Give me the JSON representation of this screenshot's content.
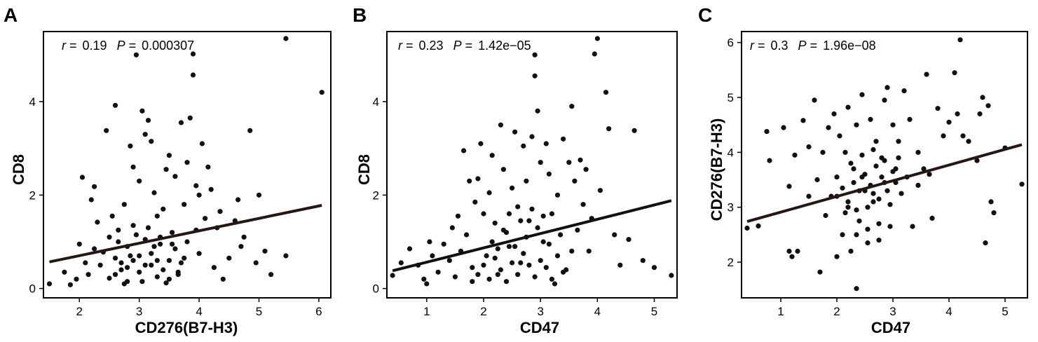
{
  "chart_data": [
    {
      "type": "scatter",
      "panel": "A",
      "title": "",
      "xlabel": "CD276(B7-H3)",
      "ylabel": "CD8",
      "xlim": [
        1.4,
        6.2
      ],
      "ylim": [
        -0.2,
        5.5
      ],
      "xticks": [
        2,
        3,
        4,
        5,
        6
      ],
      "yticks": [
        0,
        2,
        4
      ],
      "grid": false,
      "legend": "none",
      "annotation": {
        "r_symbol": "r",
        "r_value": "0.19",
        "p_symbol": "P",
        "p_value": "0.000307",
        "eq": "="
      },
      "trend": {
        "x": [
          1.5,
          6.05
        ],
        "y": [
          0.57,
          1.78
        ]
      },
      "point_color": "#111111",
      "line_color": "#231815",
      "points": [
        [
          1.5,
          0.1
        ],
        [
          1.75,
          0.35
        ],
        [
          1.85,
          0.08
        ],
        [
          1.95,
          0.2
        ],
        [
          2.05,
          2.38
        ],
        [
          2.0,
          0.95
        ],
        [
          2.1,
          0.55
        ],
        [
          2.15,
          0.3
        ],
        [
          2.2,
          1.9
        ],
        [
          2.25,
          2.18
        ],
        [
          2.25,
          0.85
        ],
        [
          2.3,
          1.42
        ],
        [
          2.35,
          0.5
        ],
        [
          2.4,
          0.78
        ],
        [
          2.45,
          3.38
        ],
        [
          2.5,
          1.1
        ],
        [
          2.5,
          0.22
        ],
        [
          2.55,
          1.55
        ],
        [
          2.6,
          3.92
        ],
        [
          2.6,
          0.65
        ],
        [
          2.65,
          1.25
        ],
        [
          2.7,
          0.4
        ],
        [
          2.75,
          1.8
        ],
        [
          2.8,
          0.9
        ],
        [
          2.8,
          0.15
        ],
        [
          2.85,
          3.05
        ],
        [
          2.9,
          2.6
        ],
        [
          2.9,
          1.35
        ],
        [
          2.95,
          5.0
        ],
        [
          3.0,
          2.3
        ],
        [
          3.0,
          0.7
        ],
        [
          3.05,
          3.8
        ],
        [
          3.1,
          3.3
        ],
        [
          3.1,
          1.05
        ],
        [
          3.15,
          3.6
        ],
        [
          3.2,
          3.15
        ],
        [
          3.2,
          0.5
        ],
        [
          3.25,
          2.05
        ],
        [
          3.3,
          1.55
        ],
        [
          3.3,
          0.25
        ],
        [
          3.35,
          0.95
        ],
        [
          3.4,
          1.7
        ],
        [
          3.45,
          2.55
        ],
        [
          3.5,
          2.85
        ],
        [
          3.5,
          0.6
        ],
        [
          3.55,
          1.2
        ],
        [
          3.6,
          2.4
        ],
        [
          3.65,
          0.35
        ],
        [
          3.7,
          3.55
        ],
        [
          3.75,
          1.8
        ],
        [
          3.8,
          2.7
        ],
        [
          3.8,
          1.0
        ],
        [
          3.85,
          3.65
        ],
        [
          3.9,
          4.57
        ],
        [
          3.9,
          5.02
        ],
        [
          3.95,
          2.2
        ],
        [
          4.0,
          2.0
        ],
        [
          4.0,
          0.75
        ],
        [
          4.05,
          3.1
        ],
        [
          4.1,
          1.5
        ],
        [
          4.15,
          2.6
        ],
        [
          4.2,
          2.12
        ],
        [
          4.25,
          0.45
        ],
        [
          4.3,
          1.3
        ],
        [
          4.35,
          1.65
        ],
        [
          4.4,
          0.2
        ],
        [
          4.5,
          0.65
        ],
        [
          4.6,
          1.45
        ],
        [
          4.65,
          1.9
        ],
        [
          4.7,
          0.9
        ],
        [
          4.75,
          1.1
        ],
        [
          4.85,
          3.38
        ],
        [
          4.95,
          0.55
        ],
        [
          5.0,
          2.0
        ],
        [
          5.1,
          0.8
        ],
        [
          5.2,
          0.3
        ],
        [
          5.45,
          0.7
        ],
        [
          5.45,
          5.35
        ],
        [
          6.05,
          4.2
        ],
        [
          2.6,
          0.3
        ],
        [
          2.7,
          0.55
        ],
        [
          2.8,
          0.45
        ],
        [
          2.9,
          0.6
        ],
        [
          3.0,
          0.35
        ],
        [
          3.1,
          0.5
        ],
        [
          3.2,
          0.75
        ],
        [
          3.3,
          0.6
        ],
        [
          3.4,
          0.4
        ],
        [
          3.5,
          0.2
        ],
        [
          3.6,
          0.85
        ],
        [
          3.7,
          0.55
        ],
        [
          2.65,
          1.0
        ],
        [
          2.95,
          1.15
        ],
        [
          3.15,
          1.3
        ],
        [
          3.35,
          1.1
        ],
        [
          3.55,
          0.95
        ],
        [
          3.75,
          0.65
        ],
        [
          2.75,
          0.1
        ],
        [
          3.05,
          0.15
        ],
        [
          3.45,
          0.12
        ],
        [
          3.65,
          0.3
        ],
        [
          2.85,
          0.7
        ],
        [
          3.25,
          0.9
        ],
        [
          3.95,
          1.25
        ]
      ]
    },
    {
      "type": "scatter",
      "panel": "B",
      "title": "",
      "xlabel": "CD47",
      "ylabel": "CD8",
      "xlim": [
        0.3,
        5.4
      ],
      "ylim": [
        -0.2,
        5.5
      ],
      "xticks": [
        1,
        2,
        3,
        4,
        5
      ],
      "yticks": [
        0,
        2,
        4
      ],
      "grid": false,
      "legend": "none",
      "annotation": {
        "r_symbol": "r",
        "r_value": "0.23",
        "p_symbol": "P",
        "p_value": "1.42e−05",
        "eq": "="
      },
      "trend": {
        "x": [
          0.4,
          5.3
        ],
        "y": [
          0.38,
          1.88
        ]
      },
      "point_color": "#111111",
      "line_color": "#111111",
      "points": [
        [
          0.4,
          0.28
        ],
        [
          0.55,
          0.55
        ],
        [
          0.7,
          0.85
        ],
        [
          0.85,
          0.5
        ],
        [
          0.95,
          0.2
        ],
        [
          1.0,
          0.1
        ],
        [
          1.05,
          1.0
        ],
        [
          1.1,
          0.7
        ],
        [
          1.2,
          0.35
        ],
        [
          1.3,
          0.95
        ],
        [
          1.4,
          0.6
        ],
        [
          1.45,
          1.3
        ],
        [
          1.5,
          0.25
        ],
        [
          1.55,
          1.55
        ],
        [
          1.6,
          0.8
        ],
        [
          1.65,
          2.95
        ],
        [
          1.7,
          1.15
        ],
        [
          1.75,
          2.3
        ],
        [
          1.8,
          0.45
        ],
        [
          1.85,
          1.85
        ],
        [
          1.9,
          2.35
        ],
        [
          1.95,
          3.1
        ],
        [
          2.0,
          1.6
        ],
        [
          2.05,
          0.7
        ],
        [
          2.1,
          2.05
        ],
        [
          2.15,
          2.85
        ],
        [
          2.2,
          1.4
        ],
        [
          2.25,
          0.3
        ],
        [
          2.3,
          3.5
        ],
        [
          2.35,
          2.55
        ],
        [
          2.4,
          1.2
        ],
        [
          2.45,
          0.9
        ],
        [
          2.5,
          2.15
        ],
        [
          2.55,
          3.35
        ],
        [
          2.6,
          1.75
        ],
        [
          2.65,
          0.55
        ],
        [
          2.7,
          3.05
        ],
        [
          2.75,
          2.3
        ],
        [
          2.8,
          1.45
        ],
        [
          2.85,
          3.25
        ],
        [
          2.9,
          4.55
        ],
        [
          2.9,
          5.0
        ],
        [
          2.95,
          3.8
        ],
        [
          3.0,
          2.7
        ],
        [
          3.05,
          1.0
        ],
        [
          3.1,
          3.1
        ],
        [
          3.15,
          2.45
        ],
        [
          3.2,
          1.6
        ],
        [
          3.3,
          2.0
        ],
        [
          3.4,
          3.2
        ],
        [
          3.45,
          0.4
        ],
        [
          3.5,
          2.7
        ],
        [
          3.55,
          3.9
        ],
        [
          3.6,
          2.3
        ],
        [
          3.65,
          1.25
        ],
        [
          3.7,
          2.75
        ],
        [
          3.75,
          1.8
        ],
        [
          3.8,
          2.55
        ],
        [
          3.85,
          0.8
        ],
        [
          3.9,
          1.5
        ],
        [
          3.95,
          5.02
        ],
        [
          4.0,
          5.35
        ],
        [
          4.05,
          2.1
        ],
        [
          4.15,
          4.2
        ],
        [
          4.2,
          3.42
        ],
        [
          4.3,
          1.15
        ],
        [
          4.4,
          0.5
        ],
        [
          4.55,
          1.05
        ],
        [
          4.65,
          3.38
        ],
        [
          4.8,
          0.6
        ],
        [
          5.0,
          0.45
        ],
        [
          5.3,
          0.28
        ],
        [
          1.9,
          0.3
        ],
        [
          2.0,
          0.5
        ],
        [
          2.1,
          0.2
        ],
        [
          2.2,
          0.65
        ],
        [
          2.3,
          0.4
        ],
        [
          2.4,
          0.15
        ],
        [
          2.5,
          0.55
        ],
        [
          2.6,
          0.3
        ],
        [
          2.7,
          0.75
        ],
        [
          2.8,
          0.5
        ],
        [
          2.9,
          0.25
        ],
        [
          3.0,
          0.6
        ],
        [
          3.1,
          0.45
        ],
        [
          3.2,
          0.2
        ],
        [
          3.3,
          0.7
        ],
        [
          3.4,
          0.35
        ],
        [
          2.15,
          1.0
        ],
        [
          2.35,
          1.25
        ],
        [
          2.55,
          0.9
        ],
        [
          2.75,
          1.1
        ],
        [
          2.95,
          1.3
        ],
        [
          3.15,
          0.95
        ],
        [
          3.35,
          1.15
        ],
        [
          3.55,
          0.8
        ],
        [
          2.45,
          1.6
        ],
        [
          2.65,
          1.45
        ],
        [
          2.85,
          1.7
        ],
        [
          3.05,
          1.55
        ],
        [
          3.25,
          0.1
        ],
        [
          2.25,
          0.85
        ],
        [
          1.8,
          0.15
        ]
      ]
    },
    {
      "type": "scatter",
      "panel": "C",
      "title": "",
      "xlabel": "CD47",
      "ylabel": "CD276(B7-H3)",
      "xlim": [
        0.3,
        5.4
      ],
      "ylim": [
        1.35,
        6.2
      ],
      "xticks": [
        1,
        2,
        3,
        4,
        5
      ],
      "yticks": [
        2,
        3,
        4,
        5,
        6
      ],
      "grid": false,
      "legend": "none",
      "annotation": {
        "r_symbol": "r",
        "r_value": "0.3",
        "p_symbol": "P",
        "p_value": "1.96e−08",
        "eq": "="
      },
      "trend": {
        "x": [
          0.4,
          5.3
        ],
        "y": [
          2.74,
          4.14
        ]
      },
      "point_color": "#111111",
      "line_color": "#231815",
      "points": [
        [
          0.4,
          2.62
        ],
        [
          0.6,
          2.66
        ],
        [
          0.75,
          4.38
        ],
        [
          0.8,
          3.85
        ],
        [
          1.05,
          4.45
        ],
        [
          1.15,
          3.38
        ],
        [
          1.15,
          2.2
        ],
        [
          1.2,
          2.1
        ],
        [
          1.25,
          3.95
        ],
        [
          1.3,
          2.2
        ],
        [
          1.4,
          4.58
        ],
        [
          1.5,
          4.1
        ],
        [
          1.5,
          3.2
        ],
        [
          1.6,
          4.95
        ],
        [
          1.65,
          3.5
        ],
        [
          1.7,
          1.82
        ],
        [
          1.75,
          4.0
        ],
        [
          1.8,
          2.85
        ],
        [
          1.85,
          4.45
        ],
        [
          1.9,
          3.2
        ],
        [
          1.95,
          4.7
        ],
        [
          2.0,
          2.1
        ],
        [
          2.0,
          3.55
        ],
        [
          2.05,
          4.3
        ],
        [
          2.1,
          2.5
        ],
        [
          2.15,
          4.0
        ],
        [
          2.2,
          3.0
        ],
        [
          2.2,
          4.82
        ],
        [
          2.25,
          2.2
        ],
        [
          2.3,
          3.7
        ],
        [
          2.35,
          1.52
        ],
        [
          2.35,
          4.5
        ],
        [
          2.4,
          2.75
        ],
        [
          2.45,
          5.05
        ],
        [
          2.5,
          3.3
        ],
        [
          2.55,
          2.35
        ],
        [
          2.6,
          4.6
        ],
        [
          2.65,
          3.1
        ],
        [
          2.7,
          4.2
        ],
        [
          2.75,
          2.4
        ],
        [
          2.8,
          3.9
        ],
        [
          2.85,
          4.95
        ],
        [
          2.9,
          5.18
        ],
        [
          2.95,
          2.65
        ],
        [
          3.0,
          4.5
        ],
        [
          3.05,
          3.45
        ],
        [
          3.1,
          4.2
        ],
        [
          3.2,
          5.12
        ],
        [
          3.3,
          4.6
        ],
        [
          3.35,
          2.65
        ],
        [
          3.45,
          4.0
        ],
        [
          3.55,
          3.7
        ],
        [
          3.6,
          5.42
        ],
        [
          3.7,
          2.8
        ],
        [
          3.8,
          4.8
        ],
        [
          3.9,
          4.3
        ],
        [
          4.0,
          4.55
        ],
        [
          4.1,
          5.45
        ],
        [
          4.15,
          4.7
        ],
        [
          4.2,
          6.05
        ],
        [
          4.25,
          4.3
        ],
        [
          4.35,
          4.2
        ],
        [
          4.5,
          3.85
        ],
        [
          4.55,
          4.7
        ],
        [
          4.6,
          5.0
        ],
        [
          4.65,
          2.35
        ],
        [
          4.7,
          4.85
        ],
        [
          4.75,
          3.1
        ],
        [
          4.8,
          2.9
        ],
        [
          5.0,
          4.08
        ],
        [
          5.3,
          3.42
        ],
        [
          2.0,
          3.2
        ],
        [
          2.1,
          3.35
        ],
        [
          2.2,
          3.1
        ],
        [
          2.3,
          3.45
        ],
        [
          2.4,
          3.3
        ],
        [
          2.5,
          3.6
        ],
        [
          2.6,
          3.4
        ],
        [
          2.7,
          3.75
        ],
        [
          2.8,
          3.55
        ],
        [
          2.9,
          3.3
        ],
        [
          3.0,
          3.65
        ],
        [
          3.1,
          3.9
        ],
        [
          2.15,
          2.9
        ],
        [
          2.35,
          2.95
        ],
        [
          2.55,
          3.0
        ],
        [
          2.75,
          3.15
        ],
        [
          2.95,
          3.05
        ],
        [
          3.15,
          3.25
        ],
        [
          2.25,
          3.8
        ],
        [
          2.45,
          3.95
        ],
        [
          2.65,
          4.05
        ],
        [
          2.85,
          3.85
        ],
        [
          3.05,
          3.7
        ],
        [
          2.35,
          2.5
        ],
        [
          2.55,
          2.6
        ],
        [
          2.75,
          2.7
        ],
        [
          2.45,
          3.55
        ],
        [
          2.65,
          3.25
        ],
        [
          2.85,
          3.45
        ],
        [
          3.25,
          3.55
        ],
        [
          3.45,
          3.4
        ],
        [
          3.65,
          3.6
        ]
      ]
    }
  ]
}
